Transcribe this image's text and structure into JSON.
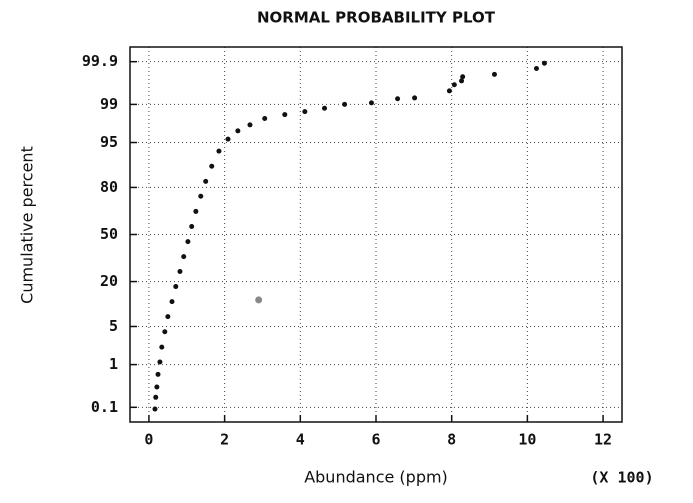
{
  "chart_data": {
    "type": "scatter",
    "title": "NORMAL PROBABILITY PLOT",
    "x_label": "Abundance (ppm)",
    "x_multiplier": "(X 100)",
    "y_label": "Cumulative percent",
    "y_scale": "probability",
    "xlim": [
      -0.5,
      12.5
    ],
    "xticks": [
      0,
      2,
      4,
      6,
      8,
      10,
      12
    ],
    "ylim": [
      0.04,
      99.96
    ],
    "yticks": [
      0.1,
      1,
      5,
      20,
      50,
      80,
      95,
      99,
      99.9
    ],
    "grid": true,
    "series": [
      {
        "color": "#111111",
        "x": [
          0.16,
          0.18,
          0.21,
          0.24,
          0.29,
          0.34,
          0.42,
          0.5,
          0.61,
          0.71,
          0.82,
          0.92,
          1.03,
          1.13,
          1.24,
          1.37,
          1.5,
          1.66,
          1.85,
          2.09,
          2.35,
          2.67,
          3.06,
          3.59,
          4.12,
          4.64,
          5.17,
          5.88,
          6.57,
          7.02,
          7.94,
          8.07,
          8.26,
          8.29,
          9.13,
          10.24,
          10.45
        ],
        "values": [
          0.09,
          0.18,
          0.32,
          0.62,
          1.13,
          2.2,
          4.1,
          7.1,
          11.5,
          17.6,
          25.4,
          34.6,
          44.9,
          55.7,
          66.0,
          75.3,
          82.9,
          88.9,
          93.2,
          95.6,
          96.8,
          97.5,
          98.1,
          98.4,
          98.6,
          98.8,
          99.0,
          99.07,
          99.24,
          99.27,
          99.49,
          99.63,
          99.7,
          99.76,
          99.79,
          99.85,
          99.89
        ]
      },
      {
        "color": "#888888",
        "x": [
          2.9
        ],
        "values": [
          12.1
        ]
      }
    ]
  }
}
